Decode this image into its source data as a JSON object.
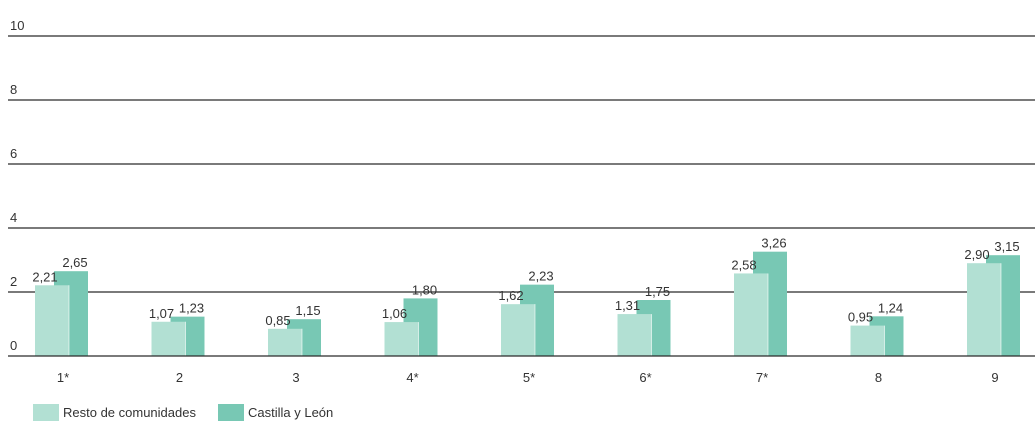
{
  "chart_data": {
    "type": "bar",
    "title": "",
    "xlabel": "",
    "ylabel": "",
    "ylim": [
      0,
      10
    ],
    "yticks": [
      "0",
      "2",
      "4",
      "6",
      "8",
      "10"
    ],
    "grid": true,
    "legend_position": "bottom-left",
    "categories": [
      "1*",
      "2",
      "3",
      "4*",
      "5*",
      "6*",
      "7*",
      "8",
      "9"
    ],
    "series": [
      {
        "name": "Resto de comunidades",
        "color": "#b2e0d3",
        "values": [
          2.21,
          1.07,
          0.85,
          1.06,
          1.62,
          1.31,
          2.58,
          0.95,
          2.9
        ],
        "labels": [
          "2,21",
          "1,07",
          "0,85",
          "1,06",
          "1,62",
          "1,31",
          "2,58",
          "0,95",
          "2,90"
        ]
      },
      {
        "name": "Castilla y León",
        "color": "#78c8b4",
        "values": [
          2.65,
          1.23,
          1.15,
          1.8,
          2.23,
          1.75,
          3.26,
          1.24,
          3.15
        ],
        "labels": [
          "2,65",
          "1,23",
          "1,15",
          "1,80",
          "2,23",
          "1,75",
          "3,26",
          "1,24",
          "3,15"
        ]
      }
    ]
  }
}
